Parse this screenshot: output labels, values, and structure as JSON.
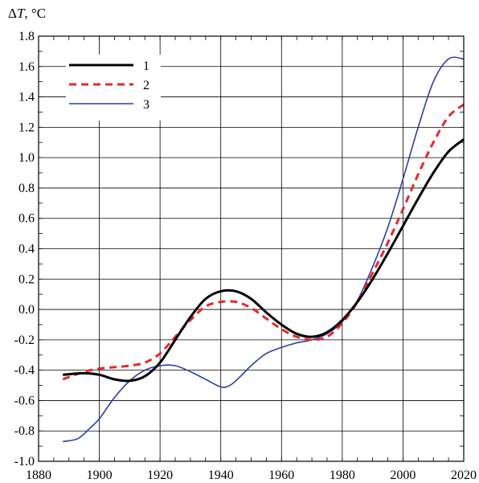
{
  "chart_data": {
    "type": "line",
    "ylabel_prefix": "Δ",
    "ylabel_var": "T",
    "ylabel_unit": ", °C",
    "xlim": [
      1880,
      2020
    ],
    "ylim": [
      -1.0,
      1.8
    ],
    "x_ticks": [
      1880,
      1900,
      1920,
      1940,
      1960,
      1980,
      2000,
      2020
    ],
    "x_tick_labels": [
      "1880",
      "1900",
      "1920",
      "1940",
      "1960",
      "1980",
      "2000",
      "2020"
    ],
    "y_ticks": [
      -1.0,
      -0.8,
      -0.6,
      -0.4,
      -0.2,
      0.0,
      0.2,
      0.4,
      0.6,
      0.8,
      1.0,
      1.2,
      1.4,
      1.6,
      1.8
    ],
    "y_tick_labels": [
      "-1.0",
      "-0.8",
      "-0.6",
      "-0.4",
      "-0.2",
      "0.0",
      "0.2",
      "0.4",
      "0.6",
      "0.8",
      "1.0",
      "1.2",
      "1.4",
      "1.6",
      "1.8"
    ],
    "grid": true,
    "legend_position": "top-left",
    "series": [
      {
        "name": "1",
        "color": "#000000",
        "dash": "solid",
        "x": [
          1888,
          1895,
          1900,
          1905,
          1910,
          1915,
          1920,
          1925,
          1930,
          1935,
          1940,
          1945,
          1950,
          1955,
          1960,
          1965,
          1970,
          1975,
          1980,
          1985,
          1990,
          1995,
          2000,
          2005,
          2010,
          2015,
          2020
        ],
        "y": [
          -0.43,
          -0.42,
          -0.43,
          -0.46,
          -0.47,
          -0.44,
          -0.35,
          -0.2,
          -0.05,
          0.07,
          0.12,
          0.12,
          0.07,
          -0.02,
          -0.1,
          -0.16,
          -0.18,
          -0.15,
          -0.07,
          0.05,
          0.2,
          0.37,
          0.55,
          0.73,
          0.9,
          1.04,
          1.12
        ]
      },
      {
        "name": "2",
        "color": "#e8282b",
        "dash": "dashed",
        "x": [
          1888,
          1895,
          1900,
          1905,
          1910,
          1915,
          1920,
          1925,
          1930,
          1935,
          1940,
          1945,
          1950,
          1955,
          1960,
          1965,
          1970,
          1975,
          1980,
          1985,
          1990,
          1995,
          2000,
          2005,
          2010,
          2015,
          2020
        ],
        "y": [
          -0.46,
          -0.41,
          -0.39,
          -0.38,
          -0.37,
          -0.35,
          -0.29,
          -0.18,
          -0.07,
          0.02,
          0.05,
          0.05,
          0.01,
          -0.06,
          -0.13,
          -0.18,
          -0.2,
          -0.18,
          -0.09,
          0.05,
          0.24,
          0.44,
          0.66,
          0.89,
          1.1,
          1.27,
          1.35
        ]
      },
      {
        "name": "3",
        "color": "#2b3fa8",
        "dash": "solid",
        "x": [
          1888,
          1893,
          1897,
          1900,
          1905,
          1910,
          1915,
          1920,
          1925,
          1930,
          1935,
          1940,
          1943,
          1946,
          1950,
          1955,
          1960,
          1965,
          1970,
          1975,
          1980,
          1985,
          1990,
          1995,
          2000,
          2005,
          2010,
          2015,
          2020
        ],
        "y": [
          -0.87,
          -0.85,
          -0.78,
          -0.72,
          -0.58,
          -0.47,
          -0.4,
          -0.37,
          -0.37,
          -0.41,
          -0.46,
          -0.51,
          -0.5,
          -0.45,
          -0.37,
          -0.29,
          -0.25,
          -0.22,
          -0.2,
          -0.16,
          -0.08,
          0.06,
          0.28,
          0.54,
          0.86,
          1.2,
          1.5,
          1.65,
          1.65
        ]
      }
    ]
  }
}
